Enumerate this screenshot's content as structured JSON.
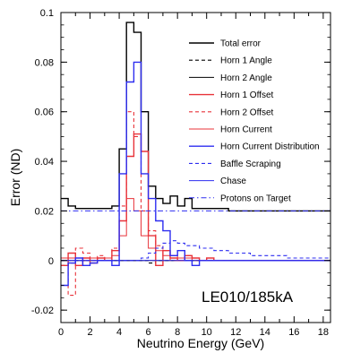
{
  "chart_data": {
    "type": "line",
    "title": "",
    "xlabel": "Neutrino Energy (GeV)",
    "ylabel": "Error (ND)",
    "xlim": [
      0,
      18.5
    ],
    "ylim": [
      -0.025,
      0.1
    ],
    "grid": false,
    "legend_placement": "top-right",
    "x_ticks": [
      0,
      2,
      4,
      6,
      8,
      10,
      12,
      14,
      16,
      18
    ],
    "y_ticks": [
      -0.02,
      0,
      0.02,
      0.04,
      0.06,
      0.08,
      0.1
    ],
    "x_tick_labels": [
      "0",
      "2",
      "4",
      "6",
      "8",
      "10",
      "12",
      "14",
      "16",
      "18"
    ],
    "y_tick_labels": [
      "-0.02",
      "0",
      "0.02",
      "0.04",
      "0.06",
      "0.08",
      "0.1"
    ],
    "annotation": "LE010/185kA",
    "bin_edges": [
      0,
      0.5,
      1,
      1.5,
      2,
      2.5,
      3,
      3.5,
      4,
      4.5,
      5,
      5.5,
      6,
      6.5,
      7,
      7.5,
      8,
      8.5,
      9,
      9.5,
      10,
      10.5,
      11,
      11.5,
      12,
      12.5,
      13,
      13.5,
      14,
      14.5,
      15,
      15.5,
      16,
      16.5,
      17,
      17.5,
      18,
      18.5
    ],
    "series": [
      {
        "name": "Total error",
        "color": "#000000",
        "dash": "solid",
        "values": [
          0.025,
          0.022,
          0.021,
          0.021,
          0.021,
          0.021,
          0.021,
          0.022,
          0.045,
          0.096,
          0.092,
          0.06,
          0.03,
          0.025,
          0.023,
          0.026,
          0.022,
          0.025,
          0.021,
          0.021,
          0.021,
          0.021,
          0.021,
          0.02,
          0.02,
          0.02,
          0.02,
          0.02,
          0.02,
          0.02,
          0.02,
          0.02,
          0.02,
          0.02,
          0.02,
          0.02,
          0.02
        ]
      },
      {
        "name": "Horn 1 Angle",
        "color": "#000000",
        "dash": "dashed",
        "values": [
          -0.002,
          -0.001,
          0.0,
          0.0,
          -0.001,
          0.0,
          0.0,
          0.0,
          0.0,
          0.0,
          0.0,
          0.0,
          -0.001,
          0.0,
          0.0,
          0.0,
          0.0,
          0.0,
          0.0,
          0.0,
          0.0,
          0.0,
          0.0,
          0.0,
          0.0,
          0.0,
          0.0,
          0.0,
          0.0,
          0.0,
          0.0,
          0.0,
          0.0,
          0.0,
          0.0,
          0.0,
          0.0
        ]
      },
      {
        "name": "Horn 2 Angle",
        "color": "#000000",
        "dash": "solid-thin",
        "values": [
          0.0,
          0.0,
          0.0,
          0.0,
          0.0,
          0.0,
          0.0,
          0.0,
          0.0,
          0.0,
          0.0,
          0.0,
          0.0,
          0.0,
          0.0,
          0.0,
          0.0,
          0.0,
          0.0,
          0.0,
          0.0,
          0.0,
          0.0,
          0.0,
          0.0,
          0.0,
          0.0,
          0.0,
          0.0,
          0.0,
          0.0,
          0.0,
          0.0,
          0.0,
          0.0,
          0.0,
          0.0
        ]
      },
      {
        "name": "Horn 1 Offset",
        "color": "#e8333a",
        "dash": "solid",
        "values": [
          -0.002,
          0.003,
          -0.002,
          0.001,
          -0.001,
          0.001,
          0.0,
          0.004,
          0.016,
          0.042,
          0.051,
          0.044,
          0.01,
          -0.002,
          0.004,
          0.001,
          0.0,
          0.002,
          0.001,
          0.0,
          0.001,
          0.0,
          0.0,
          0.0,
          0.0,
          0.0,
          0.0,
          0.0,
          0.0,
          0.0,
          0.0,
          0.0,
          0.0,
          0.0,
          0.0,
          0.0,
          0.0
        ]
      },
      {
        "name": "Horn 2 Offset",
        "color": "#e8333a",
        "dash": "dashed",
        "values": [
          0.0,
          -0.014,
          0.005,
          0.003,
          0.0,
          0.002,
          0.0,
          0.005,
          0.022,
          0.06,
          0.05,
          0.02,
          0.012,
          0.006,
          0.004,
          0.0,
          0.0,
          0.002,
          0.0,
          0.0,
          0.0,
          0.0,
          0.0,
          0.0,
          0.0,
          0.0,
          0.0,
          0.0,
          0.0,
          0.0,
          0.0,
          0.0,
          0.0,
          0.0,
          0.0,
          0.0,
          0.0
        ]
      },
      {
        "name": "Horn Current",
        "color": "#e8333a",
        "dash": "solid-thin",
        "values": [
          0.001,
          0.001,
          0.001,
          0.0,
          0.001,
          0.001,
          0.001,
          0.002,
          0.01,
          0.025,
          0.02,
          0.01,
          0.005,
          0.004,
          0.002,
          0.002,
          0.001,
          0.001,
          0.001,
          0.0,
          0.0,
          0.0,
          0.0,
          0.0,
          0.0,
          0.0,
          0.0,
          0.0,
          0.0,
          0.0,
          0.0,
          0.0,
          0.0,
          0.0,
          0.0,
          0.0,
          0.0
        ]
      },
      {
        "name": "Horn Current Distribution",
        "color": "#2d2df0",
        "dash": "solid",
        "values": [
          -0.01,
          -0.001,
          0.001,
          -0.002,
          -0.001,
          0.0,
          0.0,
          -0.002,
          0.035,
          0.072,
          0.08,
          0.035,
          0.025,
          0.016,
          0.012,
          0.002,
          0.004,
          0.0,
          -0.002,
          0.0,
          0.0,
          0.0,
          0.0,
          0.0,
          0.0,
          0.0,
          0.0,
          0.0,
          0.0,
          0.0,
          0.0,
          0.0,
          0.0,
          0.0,
          0.0,
          0.0,
          0.0
        ]
      },
      {
        "name": "Baffle Scraping",
        "color": "#2d2df0",
        "dash": "dashed",
        "values": [
          0.0,
          0.0,
          0.0,
          0.0,
          0.0,
          0.0,
          0.0,
          0.0,
          0.0,
          0.0,
          0.0,
          0.001,
          0.003,
          0.005,
          0.007,
          0.008,
          0.007,
          0.006,
          0.006,
          0.005,
          0.005,
          0.004,
          0.004,
          0.003,
          0.003,
          0.003,
          0.002,
          0.002,
          0.002,
          0.002,
          0.002,
          0.001,
          0.001,
          0.001,
          0.001,
          0.001,
          0.001
        ]
      },
      {
        "name": "Chase",
        "color": "#2d2df0",
        "dash": "solid-thin",
        "values": [
          0.0,
          0.0,
          0.0,
          0.0,
          0.0,
          0.0,
          0.0,
          0.0,
          0.0,
          0.0,
          0.0,
          0.0,
          0.0,
          0.0,
          0.0,
          0.0,
          0.0,
          0.0,
          0.0,
          0.0,
          0.0,
          0.0,
          0.0,
          0.0,
          0.0,
          0.0,
          0.0,
          0.0,
          0.0,
          0.0,
          0.0,
          0.0,
          0.0,
          0.0,
          0.0,
          0.0,
          0.0
        ]
      },
      {
        "name": "Protons on Target",
        "color": "#2d2df0",
        "dash": "dashdot",
        "values": [
          0.02,
          0.02,
          0.02,
          0.02,
          0.02,
          0.02,
          0.02,
          0.02,
          0.02,
          0.02,
          0.02,
          0.02,
          0.02,
          0.02,
          0.02,
          0.02,
          0.02,
          0.02,
          0.02,
          0.02,
          0.02,
          0.02,
          0.02,
          0.02,
          0.02,
          0.02,
          0.02,
          0.02,
          0.02,
          0.02,
          0.02,
          0.02,
          0.02,
          0.02,
          0.02,
          0.02,
          0.02
        ]
      }
    ]
  }
}
